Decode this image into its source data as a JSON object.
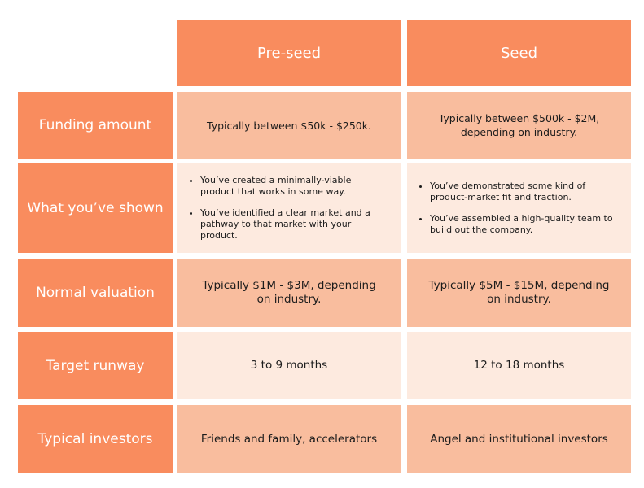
{
  "table": {
    "columns": [
      "Pre-seed",
      "Seed"
    ],
    "rows": [
      {
        "label": "Funding amount",
        "cells": [
          "Typically between $50k - $250k.",
          "Typically between $500k - $2M, depending on industry."
        ]
      },
      {
        "label": "What you’ve shown",
        "cells": [
          [
            "You’ve created a minimally-viable product that works in some way.",
            "You’ve identified a clear market and a pathway to that market with your product."
          ],
          [
            "You’ve demonstrated some kind of product-market fit and traction.",
            "You’ve assembled a high-quality team to build out the company."
          ]
        ]
      },
      {
        "label": "Normal valuation",
        "cells": [
          "Typically $1M - $3M, depending on industry.",
          "Typically $5M - $15M, depending on industry."
        ]
      },
      {
        "label": "Target runway",
        "cells": [
          "3 to 9 months",
          "12 to 18 months"
        ]
      },
      {
        "label": "Typical investors",
        "cells": [
          "Friends and family, accelerators",
          "Angel and institutional investors"
        ]
      }
    ]
  }
}
